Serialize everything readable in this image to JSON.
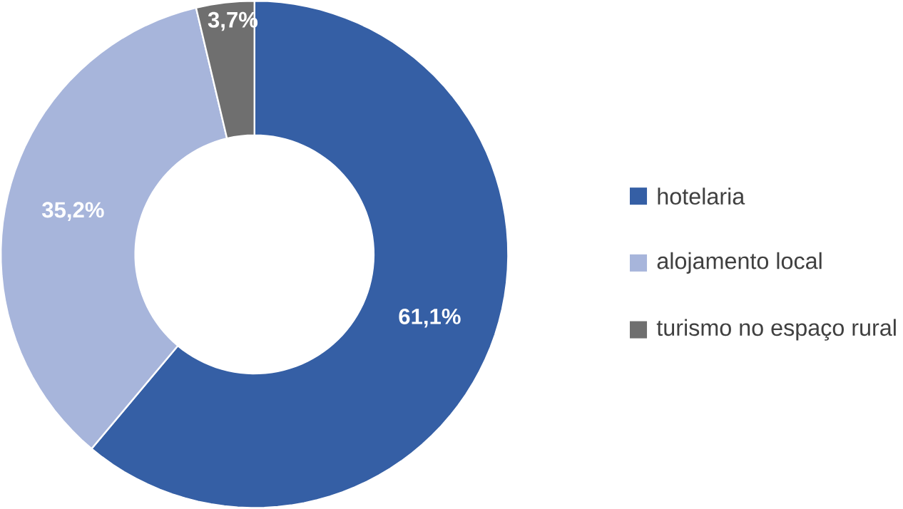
{
  "chart_data": {
    "type": "donut",
    "categories": [
      "hotelaria",
      "alojamento local",
      "turismo no espaço rural"
    ],
    "values": [
      61.1,
      35.2,
      3.7
    ],
    "colors": [
      "#355fa5",
      "#a7b5db",
      "#6f6f6f"
    ],
    "value_labels": [
      "61,1%",
      "35,2%",
      "3,7%"
    ],
    "legend": "right"
  }
}
